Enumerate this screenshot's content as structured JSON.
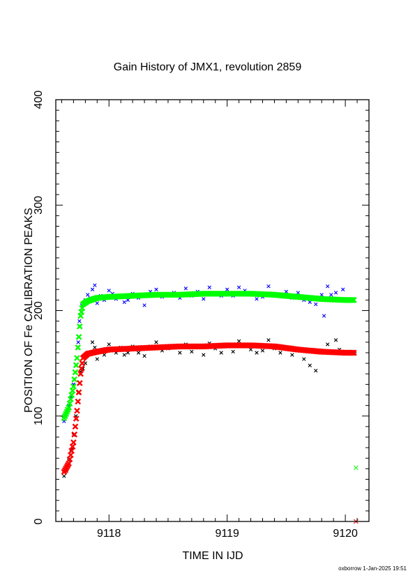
{
  "chart_data": {
    "type": "scatter",
    "title": "Gain History of JMX1, revolution 2859",
    "xlabel": "TIME IN IJD",
    "ylabel": "POSITION OF Fe CALIBRATION PEAKS",
    "xlim": [
      9117.55,
      9120.2
    ],
    "ylim": [
      0,
      400
    ],
    "xticks": [
      9118,
      9119,
      9120
    ],
    "yticks": [
      0,
      100,
      200,
      300,
      400
    ],
    "xtick_labels": [
      "9118",
      "9119",
      "9120"
    ],
    "ytick_labels": [
      "0",
      "100",
      "200",
      "300",
      "400"
    ],
    "grid": false,
    "series": [
      {
        "color": "#0000ff",
        "marker": "x",
        "points": [
          [
            9117.62,
            95
          ],
          [
            9117.64,
            102
          ],
          [
            9117.66,
            110
          ],
          [
            9117.68,
            118
          ],
          [
            9117.7,
            130
          ],
          [
            9117.72,
            148
          ],
          [
            9117.74,
            170
          ],
          [
            9117.75,
            190
          ],
          [
            9117.77,
            205
          ],
          [
            9117.8,
            210
          ],
          [
            9117.82,
            215
          ],
          [
            9117.84,
            212
          ],
          [
            9117.86,
            220
          ],
          [
            9117.88,
            224
          ],
          [
            9117.9,
            207
          ],
          [
            9117.93,
            214
          ],
          [
            9117.96,
            210
          ],
          [
            9118.0,
            219
          ],
          [
            9118.03,
            216
          ],
          [
            9118.06,
            211
          ],
          [
            9118.1,
            214
          ],
          [
            9118.13,
            208
          ],
          [
            9118.16,
            210
          ],
          [
            9118.2,
            216
          ],
          [
            9118.25,
            212
          ],
          [
            9118.3,
            205
          ],
          [
            9118.35,
            218
          ],
          [
            9118.4,
            220
          ],
          [
            9118.45,
            213
          ],
          [
            9118.5,
            215
          ],
          [
            9118.55,
            217
          ],
          [
            9118.6,
            212
          ],
          [
            9118.65,
            221
          ],
          [
            9118.7,
            214
          ],
          [
            9118.75,
            218
          ],
          [
            9118.8,
            211
          ],
          [
            9118.85,
            222
          ],
          [
            9118.9,
            216
          ],
          [
            9118.95,
            214
          ],
          [
            9119.0,
            220
          ],
          [
            9119.05,
            214
          ],
          [
            9119.1,
            222
          ],
          [
            9119.15,
            219
          ],
          [
            9119.2,
            216
          ],
          [
            9119.25,
            211
          ],
          [
            9119.3,
            213
          ],
          [
            9119.35,
            223
          ],
          [
            9119.4,
            216
          ],
          [
            9119.45,
            214
          ],
          [
            9119.5,
            218
          ],
          [
            9119.55,
            212
          ],
          [
            9119.6,
            217
          ],
          [
            9119.65,
            210
          ],
          [
            9119.7,
            208
          ],
          [
            9119.75,
            206
          ],
          [
            9119.8,
            215
          ],
          [
            9119.82,
            195
          ],
          [
            9119.85,
            223
          ],
          [
            9119.88,
            215
          ],
          [
            9119.92,
            217
          ],
          [
            9119.95,
            210
          ],
          [
            9119.98,
            220
          ]
        ]
      },
      {
        "color": "#00ff00",
        "marker": "x",
        "points": [
          [
            9117.62,
            98
          ],
          [
            9117.66,
            108
          ],
          [
            9117.7,
            128
          ],
          [
            9117.73,
            155
          ],
          [
            9117.76,
            195
          ],
          [
            9117.78,
            206
          ],
          [
            9117.82,
            209
          ],
          [
            9117.9,
            212
          ],
          [
            9118.0,
            213
          ],
          [
            9118.2,
            214
          ],
          [
            9118.4,
            215
          ],
          [
            9118.6,
            215
          ],
          [
            9118.8,
            216
          ],
          [
            9119.0,
            216
          ],
          [
            9119.2,
            216
          ],
          [
            9119.4,
            215
          ],
          [
            9119.6,
            213
          ],
          [
            9119.8,
            211
          ],
          [
            9120.0,
            210
          ],
          [
            9120.08,
            210
          ],
          [
            9120.09,
            51
          ]
        ]
      },
      {
        "color": "#000000",
        "marker": "x",
        "points": [
          [
            9117.62,
            43
          ],
          [
            9117.64,
            48
          ],
          [
            9117.66,
            58
          ],
          [
            9117.68,
            68
          ],
          [
            9117.7,
            82
          ],
          [
            9117.72,
            100
          ],
          [
            9117.74,
            122
          ],
          [
            9117.76,
            142
          ],
          [
            9117.78,
            145
          ],
          [
            9117.8,
            150
          ],
          [
            9117.82,
            158
          ],
          [
            9117.84,
            160
          ],
          [
            9117.86,
            170
          ],
          [
            9117.88,
            165
          ],
          [
            9117.9,
            154
          ],
          [
            9117.93,
            162
          ],
          [
            9117.96,
            158
          ],
          [
            9118.0,
            168
          ],
          [
            9118.03,
            163
          ],
          [
            9118.06,
            160
          ],
          [
            9118.1,
            165
          ],
          [
            9118.13,
            158
          ],
          [
            9118.16,
            160
          ],
          [
            9118.2,
            166
          ],
          [
            9118.25,
            160
          ],
          [
            9118.3,
            157
          ],
          [
            9118.35,
            166
          ],
          [
            9118.4,
            170
          ],
          [
            9118.45,
            162
          ],
          [
            9118.5,
            164
          ],
          [
            9118.55,
            166
          ],
          [
            9118.6,
            160
          ],
          [
            9118.65,
            168
          ],
          [
            9118.7,
            161
          ],
          [
            9118.75,
            165
          ],
          [
            9118.8,
            158
          ],
          [
            9118.85,
            169
          ],
          [
            9118.9,
            164
          ],
          [
            9118.95,
            160
          ],
          [
            9119.0,
            167
          ],
          [
            9119.05,
            161
          ],
          [
            9119.1,
            171
          ],
          [
            9119.15,
            166
          ],
          [
            9119.2,
            163
          ],
          [
            9119.25,
            160
          ],
          [
            9119.3,
            162
          ],
          [
            9119.35,
            172
          ],
          [
            9119.4,
            164
          ],
          [
            9119.45,
            160
          ],
          [
            9119.5,
            165
          ],
          [
            9119.55,
            158
          ],
          [
            9119.6,
            163
          ],
          [
            9119.65,
            154
          ],
          [
            9119.7,
            148
          ],
          [
            9119.75,
            143
          ],
          [
            9119.8,
            162
          ],
          [
            9119.85,
            168
          ],
          [
            9119.88,
            160
          ],
          [
            9119.92,
            172
          ],
          [
            9119.95,
            163
          ],
          [
            9120.08,
            159
          ]
        ]
      },
      {
        "color": "#ff0000",
        "marker": "x",
        "points": [
          [
            9117.62,
            47
          ],
          [
            9117.66,
            55
          ],
          [
            9117.7,
            75
          ],
          [
            9117.73,
            105
          ],
          [
            9117.76,
            140
          ],
          [
            9117.78,
            155
          ],
          [
            9117.82,
            159
          ],
          [
            9117.9,
            161
          ],
          [
            9118.0,
            163
          ],
          [
            9118.2,
            164
          ],
          [
            9118.4,
            165
          ],
          [
            9118.6,
            166
          ],
          [
            9118.8,
            166
          ],
          [
            9119.0,
            167
          ],
          [
            9119.2,
            167
          ],
          [
            9119.4,
            166
          ],
          [
            9119.6,
            163
          ],
          [
            9119.8,
            161
          ],
          [
            9120.0,
            160
          ],
          [
            9120.08,
            160
          ],
          [
            9120.09,
            0
          ]
        ]
      }
    ]
  },
  "footer": "oxborrow  1-Jan-2025 19:51"
}
